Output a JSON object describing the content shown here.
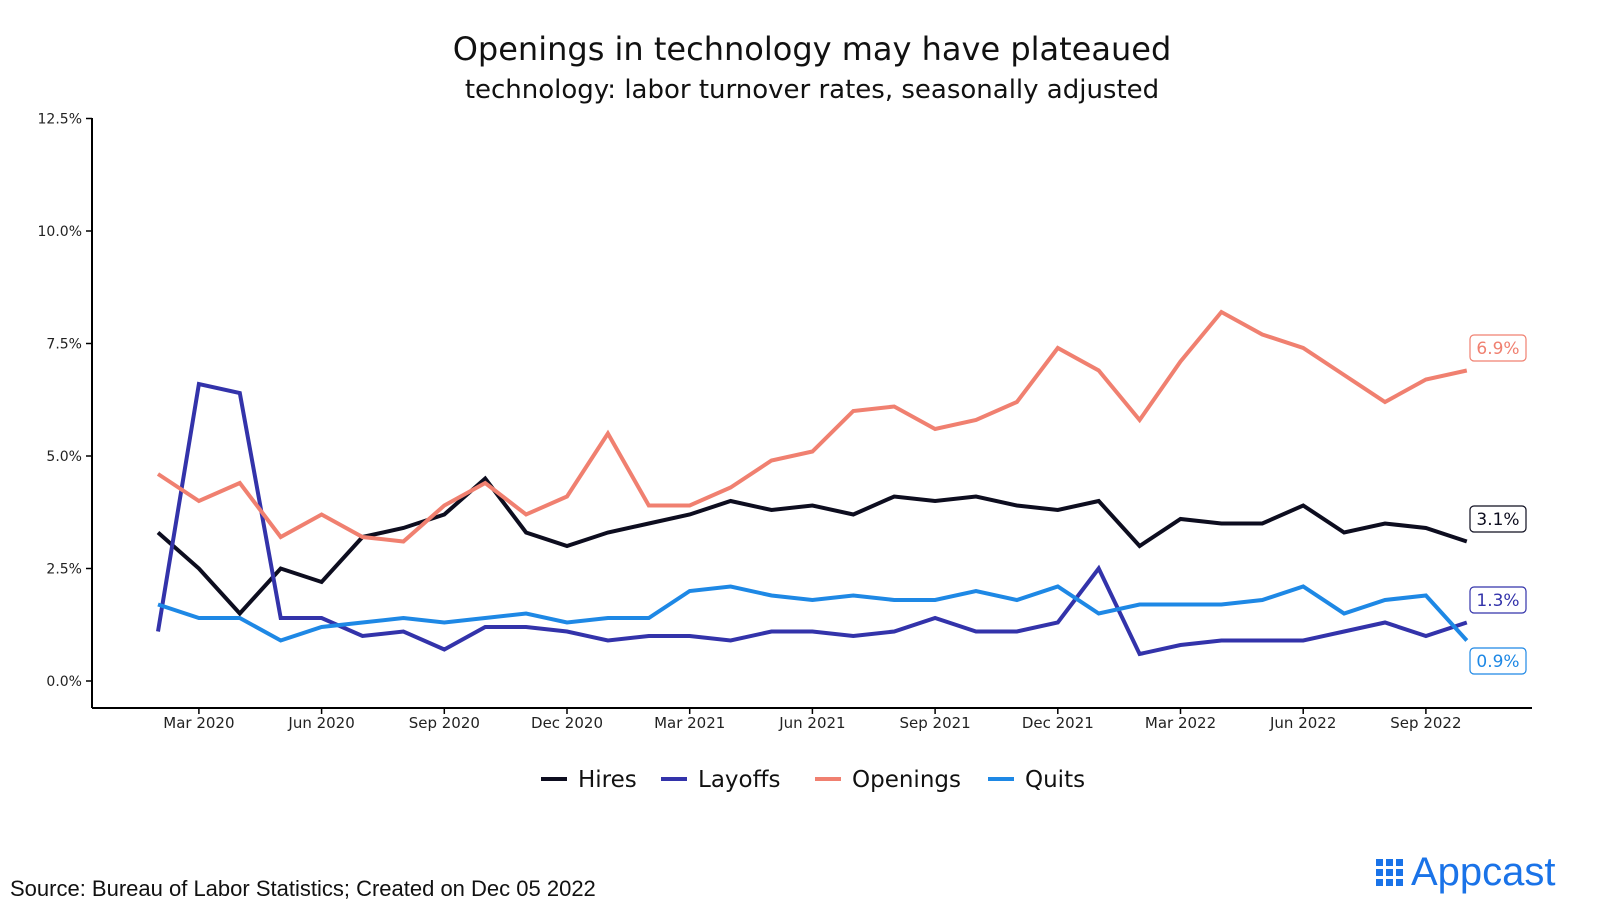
{
  "chart_data": {
    "type": "line",
    "title": "Openings in technology may have plateaued",
    "subtitle": "technology: labor turnover rates, seasonally adjusted",
    "xlabel": "",
    "ylabel": "",
    "x": [
      "2020-02",
      "2020-03",
      "2020-04",
      "2020-05",
      "2020-06",
      "2020-07",
      "2020-08",
      "2020-09",
      "2020-10",
      "2020-11",
      "2020-12",
      "2021-01",
      "2021-02",
      "2021-03",
      "2021-04",
      "2021-05",
      "2021-06",
      "2021-07",
      "2021-08",
      "2021-09",
      "2021-10",
      "2021-11",
      "2021-12",
      "2022-01",
      "2022-02",
      "2022-03",
      "2022-04",
      "2022-05",
      "2022-06",
      "2022-07",
      "2022-08",
      "2022-09",
      "2022-10"
    ],
    "xticks": [
      {
        "date": "2020-03",
        "label": "Mar 2020"
      },
      {
        "date": "2020-06",
        "label": "Jun 2020"
      },
      {
        "date": "2020-09",
        "label": "Sep 2020"
      },
      {
        "date": "2020-12",
        "label": "Dec 2020"
      },
      {
        "date": "2021-03",
        "label": "Mar 2021"
      },
      {
        "date": "2021-06",
        "label": "Jun 2021"
      },
      {
        "date": "2021-09",
        "label": "Sep 2021"
      },
      {
        "date": "2021-12",
        "label": "Dec 2021"
      },
      {
        "date": "2022-03",
        "label": "Mar 2022"
      },
      {
        "date": "2022-06",
        "label": "Jun 2022"
      },
      {
        "date": "2022-09",
        "label": "Sep 2022"
      }
    ],
    "yticks": [
      {
        "value": 0.0,
        "label": "0.0%"
      },
      {
        "value": 2.5,
        "label": "2.5%"
      },
      {
        "value": 5.0,
        "label": "5.0%"
      },
      {
        "value": 7.5,
        "label": "7.5%"
      },
      {
        "value": 10.0,
        "label": "10.0%"
      },
      {
        "value": 12.5,
        "label": "12.5%"
      }
    ],
    "ylim": [
      0,
      12.5
    ],
    "grid": false,
    "legend": "bottom",
    "series": [
      {
        "name": "Hires",
        "color": "#0d0d1f",
        "values": [
          3.3,
          2.5,
          1.5,
          2.5,
          2.2,
          3.2,
          3.4,
          3.7,
          4.5,
          3.3,
          3.0,
          3.3,
          3.5,
          3.7,
          4.0,
          3.8,
          3.9,
          3.7,
          4.1,
          4.0,
          4.1,
          3.9,
          3.8,
          4.0,
          3.0,
          3.6,
          3.5,
          3.5,
          3.9,
          3.3,
          3.5,
          3.4,
          3.1
        ],
        "end_label": "3.1%"
      },
      {
        "name": "Layoffs",
        "color": "#3333aa",
        "values": [
          1.1,
          6.6,
          6.4,
          1.4,
          1.4,
          1.0,
          1.1,
          0.7,
          1.2,
          1.2,
          1.1,
          0.9,
          1.0,
          1.0,
          0.9,
          1.1,
          1.1,
          1.0,
          1.1,
          1.4,
          1.1,
          1.1,
          1.3,
          2.5,
          0.6,
          0.8,
          0.9,
          0.9,
          0.9,
          1.1,
          1.3,
          1.0,
          1.3
        ],
        "end_label": "1.3%"
      },
      {
        "name": "Openings",
        "color": "#f08070",
        "values": [
          4.6,
          4.0,
          4.4,
          3.2,
          3.7,
          3.2,
          3.1,
          3.9,
          4.4,
          3.7,
          4.1,
          5.5,
          3.9,
          3.9,
          4.3,
          4.9,
          5.1,
          6.0,
          6.1,
          5.6,
          5.8,
          6.2,
          7.4,
          6.9,
          5.8,
          7.1,
          8.2,
          7.7,
          7.4,
          6.8,
          6.2,
          6.7,
          6.9
        ],
        "end_label": "6.9%"
      },
      {
        "name": "Quits",
        "color": "#1e88e5",
        "values": [
          1.7,
          1.4,
          1.4,
          0.9,
          1.2,
          1.3,
          1.4,
          1.3,
          1.4,
          1.5,
          1.3,
          1.4,
          1.4,
          2.0,
          2.1,
          1.9,
          1.8,
          1.9,
          1.8,
          1.8,
          2.0,
          1.8,
          2.1,
          1.5,
          1.7,
          1.7,
          1.7,
          1.8,
          2.1,
          1.5,
          1.8,
          1.9,
          0.9
        ],
        "end_label": "0.9%"
      }
    ]
  },
  "source": "Source: Bureau of Labor Statistics; Created on Dec 05 2022",
  "logo": {
    "text": "Appcast",
    "icon": "dot-grid-icon",
    "color": "#1a73e8"
  }
}
